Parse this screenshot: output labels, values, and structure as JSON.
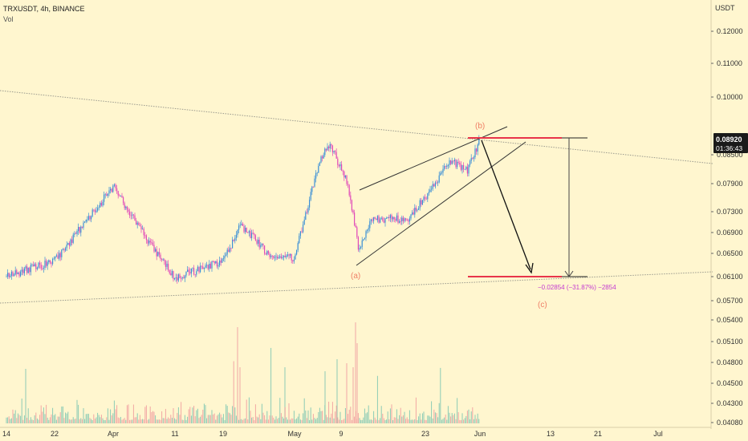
{
  "header": {
    "symbol_line": "TRXUSDT, 4h, BINANCE",
    "volume_label": "Vol"
  },
  "price_axis": {
    "currency": "USDT",
    "ticks": [
      "0.12000",
      "0.11000",
      "0.10000",
      "0.08500",
      "0.07900",
      "0.07300",
      "0.06900",
      "0.06500",
      "0.06100",
      "0.05700",
      "0.05400",
      "0.05100",
      "0.04800",
      "0.04500",
      "0.04300",
      "0.04080"
    ]
  },
  "current_price": {
    "value": "0.08920",
    "countdown": "01:36:43"
  },
  "time_axis": {
    "labels": [
      "14",
      "22",
      "Apr",
      "11",
      "19",
      "May",
      "9",
      "23",
      "Jun",
      "13",
      "21",
      "Jul"
    ]
  },
  "annotations": {
    "wave_a": "(a)",
    "wave_b": "(b)",
    "wave_c": "(c)",
    "measure_text": "−0.02854 (−31.87%) −2854"
  },
  "colors": {
    "background": "#fff6cf",
    "bull_candle": "#3a8fd6",
    "bear_candle": "#e04ab8",
    "target_line": "#e8344a",
    "wave_label": "#ef7f66",
    "measure_text": "#c43bd1",
    "volume_up": "#7fc6b2",
    "volume_down": "#f19ea0"
  },
  "chart_data": {
    "type": "candlestick",
    "symbol": "TRXUSDT",
    "interval": "4h",
    "exchange": "BINANCE",
    "price_range": [
      0.0408,
      0.12
    ],
    "close_path": [
      {
        "x": "Mar 14",
        "y": 0.061
      },
      {
        "x": "Mar 22",
        "y": 0.0637
      },
      {
        "x": "Apr 1",
        "y": 0.0783
      },
      {
        "x": "Apr 7",
        "y": 0.0668
      },
      {
        "x": "Apr 11",
        "y": 0.0608
      },
      {
        "x": "Apr 19",
        "y": 0.0636
      },
      {
        "x": "Apr 22",
        "y": 0.0705
      },
      {
        "x": "Apr 27",
        "y": 0.0644
      },
      {
        "x": "May 1",
        "y": 0.0642
      },
      {
        "x": "May 5",
        "y": 0.0825
      },
      {
        "x": "May 7",
        "y": 0.088
      },
      {
        "x": "May 10",
        "y": 0.0794
      },
      {
        "x": "May 12",
        "y": 0.0655
      },
      {
        "x": "May 14",
        "y": 0.0716
      },
      {
        "x": "May 20",
        "y": 0.0716
      },
      {
        "x": "May 24",
        "y": 0.0779
      },
      {
        "x": "May 27",
        "y": 0.084
      },
      {
        "x": "May 30",
        "y": 0.0818
      },
      {
        "x": "Jun 1",
        "y": 0.0892
      }
    ],
    "wave_points": {
      "a": {
        "x": "May 12",
        "y": 0.0638
      },
      "b": {
        "x": "Jun 1",
        "y": 0.0892
      },
      "c_target": {
        "x": "Jun 15",
        "y": 0.0612
      }
    },
    "measure": {
      "change": -0.02854,
      "percent": -31.87,
      "ticks": -2854
    },
    "current_price": 0.0892
  }
}
